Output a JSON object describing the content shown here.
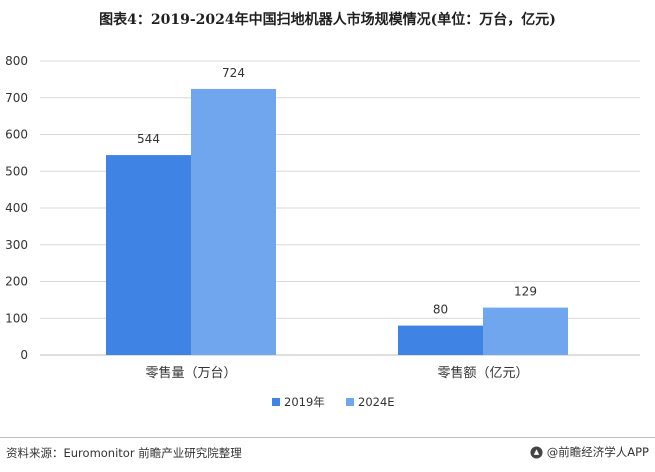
{
  "title": "图表4：2019-2024年中国扫地机器人市场规模情况(单位：万台，亿元)",
  "footer": {
    "source": "资料来源：Euromonitor 前瞻产业研究院整理",
    "brand": "@前瞻经济学人APP"
  },
  "colors": {
    "series_2019": "#3f84e5",
    "series_2024": "#6fa6ee",
    "grid": "#d9d9d9"
  },
  "chart_data": {
    "type": "bar",
    "title": "图表4：2019-2024年中国扫地机器人市场规模情况(单位：万台，亿元)",
    "categories": [
      "零售量（万台）",
      "零售额（亿元）"
    ],
    "series": [
      {
        "name": "2019年",
        "values": [
          544,
          80
        ]
      },
      {
        "name": "2024E",
        "values": [
          724,
          129
        ]
      }
    ],
    "ylim": [
      0,
      800
    ],
    "yticks": [
      0,
      100,
      200,
      300,
      400,
      500,
      600,
      700,
      800
    ],
    "xlabel": "",
    "ylabel": "",
    "grid": true,
    "legend": "bottom-center",
    "data_labels": true
  }
}
